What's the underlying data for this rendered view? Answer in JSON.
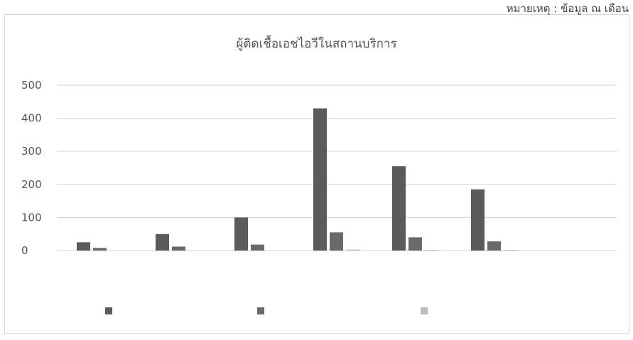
{
  "header_note": "หมายเหตุ : ข้อมูล ณ เดือน",
  "chart_data": {
    "type": "bar",
    "title": "ผู้ติดเชื้อเอชไอวีในสถานบริการ",
    "xlabel": "",
    "ylabel": "",
    "ylim": [
      0,
      500
    ],
    "yticks": [
      "0",
      "100",
      "200",
      "300",
      "400",
      "500"
    ],
    "grid": true,
    "legend_position": "bottom",
    "categories": [
      "",
      "",
      "",
      "",
      "",
      ""
    ],
    "series": [
      {
        "name": "",
        "color": "#5b5b5b",
        "values": [
          25,
          50,
          100,
          430,
          255,
          185
        ]
      },
      {
        "name": "",
        "color": "#6a6a6a",
        "values": [
          8,
          12,
          18,
          55,
          40,
          28
        ]
      },
      {
        "name": "",
        "color": "#bdbdbd",
        "values": [
          0,
          0,
          0,
          3,
          2,
          1
        ]
      }
    ]
  }
}
